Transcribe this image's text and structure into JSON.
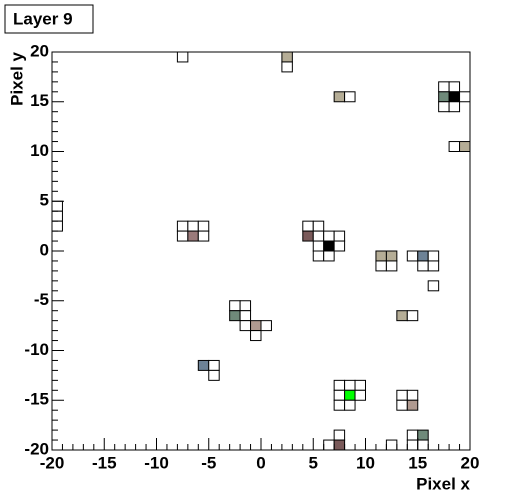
{
  "chart_data": {
    "type": "pixelmap",
    "title": "Layer 9",
    "xlabel": "Pixel x",
    "ylabel": "Pixel y",
    "xlim": [
      -20,
      20
    ],
    "ylim": [
      -20,
      20
    ],
    "xticks": [
      -20,
      -15,
      -10,
      -5,
      0,
      5,
      10,
      15,
      20
    ],
    "yticks": [
      -20,
      -15,
      -10,
      -5,
      0,
      5,
      10,
      15,
      20
    ],
    "cells": [
      {
        "x": -8,
        "y": 19,
        "color": "#ffffff"
      },
      {
        "x": 2,
        "y": 19,
        "color": "#b5ad96"
      },
      {
        "x": 2,
        "y": 18,
        "color": "#ffffff"
      },
      {
        "x": 7,
        "y": 15,
        "color": "#b5ad96"
      },
      {
        "x": 8,
        "y": 15,
        "color": "#ffffff"
      },
      {
        "x": 17,
        "y": 16,
        "color": "#ffffff"
      },
      {
        "x": 18,
        "y": 16,
        "color": "#ffffff"
      },
      {
        "x": 17,
        "y": 15,
        "color": "#6f8a7a"
      },
      {
        "x": 18,
        "y": 15,
        "color": "#000000"
      },
      {
        "x": 19,
        "y": 15,
        "color": "#ffffff"
      },
      {
        "x": 17,
        "y": 14,
        "color": "#ffffff"
      },
      {
        "x": 18,
        "y": 14,
        "color": "#ffffff"
      },
      {
        "x": 18,
        "y": 10,
        "color": "#ffffff"
      },
      {
        "x": 19,
        "y": 10,
        "color": "#b5ad96"
      },
      {
        "x": -20,
        "y": 4,
        "color": "#ffffff"
      },
      {
        "x": -20,
        "y": 3,
        "color": "#ffffff"
      },
      {
        "x": -20,
        "y": 2,
        "color": "#ffffff"
      },
      {
        "x": -8,
        "y": 2,
        "color": "#ffffff"
      },
      {
        "x": -7,
        "y": 2,
        "color": "#ffffff"
      },
      {
        "x": -6,
        "y": 2,
        "color": "#ffffff"
      },
      {
        "x": -8,
        "y": 1,
        "color": "#ffffff"
      },
      {
        "x": -7,
        "y": 1,
        "color": "#9a7a7a"
      },
      {
        "x": -6,
        "y": 1,
        "color": "#ffffff"
      },
      {
        "x": 4,
        "y": 2,
        "color": "#ffffff"
      },
      {
        "x": 5,
        "y": 2,
        "color": "#ffffff"
      },
      {
        "x": 4,
        "y": 1,
        "color": "#7a5a5a"
      },
      {
        "x": 5,
        "y": 1,
        "color": "#ffffff"
      },
      {
        "x": 6,
        "y": 1,
        "color": "#ffffff"
      },
      {
        "x": 7,
        "y": 1,
        "color": "#ffffff"
      },
      {
        "x": 5,
        "y": 0,
        "color": "#ffffff"
      },
      {
        "x": 6,
        "y": 0,
        "color": "#000000"
      },
      {
        "x": 7,
        "y": 0,
        "color": "#ffffff"
      },
      {
        "x": 5,
        "y": -1,
        "color": "#ffffff"
      },
      {
        "x": 6,
        "y": -1,
        "color": "#ffffff"
      },
      {
        "x": 11,
        "y": -1,
        "color": "#b5ad96"
      },
      {
        "x": 12,
        "y": -1,
        "color": "#b5ad96"
      },
      {
        "x": 11,
        "y": -2,
        "color": "#ffffff"
      },
      {
        "x": 12,
        "y": -2,
        "color": "#ffffff"
      },
      {
        "x": 14,
        "y": -1,
        "color": "#ffffff"
      },
      {
        "x": 15,
        "y": -1,
        "color": "#6d8296"
      },
      {
        "x": 16,
        "y": -1,
        "color": "#ffffff"
      },
      {
        "x": 15,
        "y": -2,
        "color": "#ffffff"
      },
      {
        "x": 16,
        "y": -2,
        "color": "#ffffff"
      },
      {
        "x": 16,
        "y": -4,
        "color": "#ffffff"
      },
      {
        "x": 13,
        "y": -7,
        "color": "#b5ad96"
      },
      {
        "x": 14,
        "y": -7,
        "color": "#ffffff"
      },
      {
        "x": -3,
        "y": -6,
        "color": "#ffffff"
      },
      {
        "x": -2,
        "y": -6,
        "color": "#ffffff"
      },
      {
        "x": -3,
        "y": -7,
        "color": "#6f8a7a"
      },
      {
        "x": -2,
        "y": -7,
        "color": "#ffffff"
      },
      {
        "x": -2,
        "y": -8,
        "color": "#ffffff"
      },
      {
        "x": -1,
        "y": -8,
        "color": "#b09a90"
      },
      {
        "x": 0,
        "y": -8,
        "color": "#ffffff"
      },
      {
        "x": -1,
        "y": -9,
        "color": "#ffffff"
      },
      {
        "x": -6,
        "y": -12,
        "color": "#6d8296"
      },
      {
        "x": -5,
        "y": -12,
        "color": "#ffffff"
      },
      {
        "x": -5,
        "y": -13,
        "color": "#ffffff"
      },
      {
        "x": 7,
        "y": -14,
        "color": "#ffffff"
      },
      {
        "x": 8,
        "y": -14,
        "color": "#ffffff"
      },
      {
        "x": 9,
        "y": -14,
        "color": "#ffffff"
      },
      {
        "x": 7,
        "y": -15,
        "color": "#ffffff"
      },
      {
        "x": 8,
        "y": -15,
        "color": "#00ff00"
      },
      {
        "x": 9,
        "y": -15,
        "color": "#ffffff"
      },
      {
        "x": 7,
        "y": -16,
        "color": "#ffffff"
      },
      {
        "x": 8,
        "y": -16,
        "color": "#ffffff"
      },
      {
        "x": 13,
        "y": -15,
        "color": "#ffffff"
      },
      {
        "x": 14,
        "y": -15,
        "color": "#ffffff"
      },
      {
        "x": 13,
        "y": -16,
        "color": "#ffffff"
      },
      {
        "x": 14,
        "y": -16,
        "color": "#b09a90"
      },
      {
        "x": 14,
        "y": -19,
        "color": "#ffffff"
      },
      {
        "x": 15,
        "y": -19,
        "color": "#6f8a7a"
      },
      {
        "x": 14,
        "y": -20,
        "color": "#ffffff"
      },
      {
        "x": 15,
        "y": -20,
        "color": "#ffffff"
      },
      {
        "x": 7,
        "y": -19,
        "color": "#ffffff"
      },
      {
        "x": 6,
        "y": -20,
        "color": "#ffffff"
      },
      {
        "x": 7,
        "y": -20,
        "color": "#7a5a5a"
      },
      {
        "x": 12,
        "y": -20,
        "color": "#ffffff"
      }
    ]
  }
}
